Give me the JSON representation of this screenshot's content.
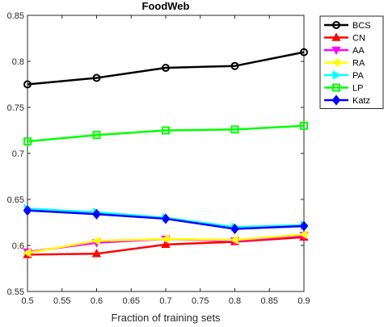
{
  "chart_data": {
    "type": "line",
    "title": "FoodWeb",
    "xlabel": "Fraction of training sets",
    "ylabel": "",
    "x": [
      0.5,
      0.6,
      0.7,
      0.8,
      0.9
    ],
    "xlim": [
      0.5,
      0.9
    ],
    "ylim": [
      0.55,
      0.85
    ],
    "xticks": [
      "0.5",
      "0.55",
      "0.6",
      "0.65",
      "0.7",
      "0.75",
      "0.8",
      "0.85",
      "0.9"
    ],
    "yticks": [
      "0.55",
      "0.6",
      "0.65",
      "0.7",
      "0.75",
      "0.8",
      "0.85"
    ],
    "grid": false,
    "legend_position": "top-right",
    "series": [
      {
        "name": "BCS",
        "color": "#000000",
        "marker": "circle",
        "values": [
          0.775,
          0.782,
          0.793,
          0.795,
          0.81
        ]
      },
      {
        "name": "CN",
        "color": "#ff0000",
        "marker": "triangle-up",
        "values": [
          0.59,
          0.591,
          0.601,
          0.604,
          0.609
        ]
      },
      {
        "name": "AA",
        "color": "#ff00ff",
        "marker": "triangle-down",
        "values": [
          0.593,
          0.603,
          0.607,
          0.605,
          0.611
        ]
      },
      {
        "name": "RA",
        "color": "#ffff00",
        "marker": "triangle-left",
        "values": [
          0.592,
          0.605,
          0.607,
          0.606,
          0.612
        ]
      },
      {
        "name": "PA",
        "color": "#00ffff",
        "marker": "triangle-right",
        "values": [
          0.64,
          0.636,
          0.63,
          0.62,
          0.622
        ]
      },
      {
        "name": "LP",
        "color": "#00ff00",
        "marker": "square",
        "values": [
          0.713,
          0.72,
          0.725,
          0.726,
          0.73
        ]
      },
      {
        "name": "Katz",
        "color": "#0000ff",
        "marker": "diamond",
        "values": [
          0.638,
          0.634,
          0.629,
          0.618,
          0.621
        ]
      }
    ]
  }
}
